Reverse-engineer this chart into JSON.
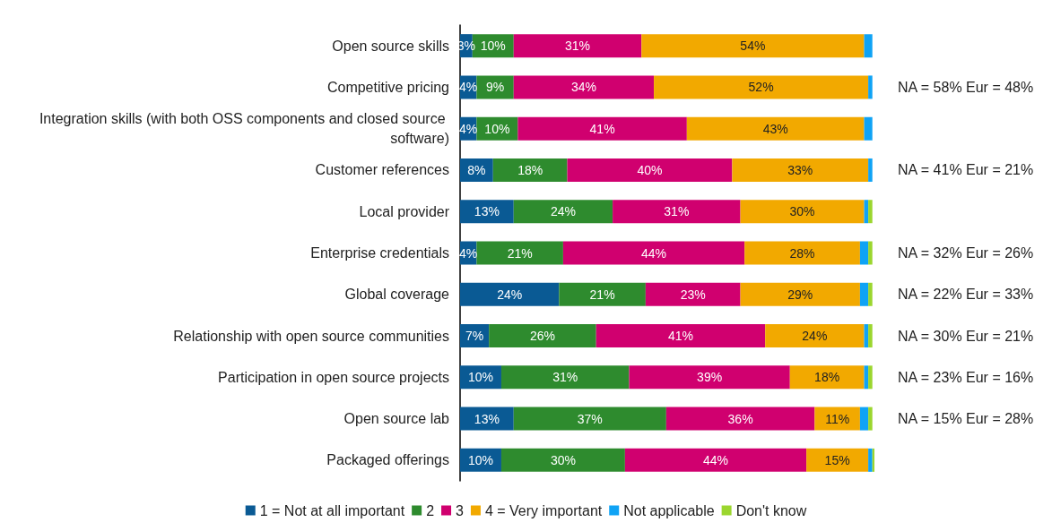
{
  "chart_data": {
    "type": "bar",
    "orientation": "horizontal",
    "stacked": true,
    "legend": "bottom",
    "categories": [
      "Open source skills",
      "Competitive pricing",
      "Integration skills (with both OSS components and closed source software)",
      "Customer references",
      "Local provider",
      "Enterprise credentials",
      "Global coverage",
      "Relationship with open source communities",
      "Participation in open source projects",
      "Open source lab",
      "Packaged offerings"
    ],
    "series": [
      {
        "name": "1 = Not at all important",
        "color": "#0a5a94",
        "values": [
          3,
          4,
          4,
          8,
          13,
          4,
          24,
          7,
          10,
          13,
          10
        ],
        "value_labels": [
          "3%",
          "4%",
          "4%",
          "8%",
          "13%",
          "4%",
          "24%",
          "7%",
          "10%",
          "13%",
          "10%"
        ]
      },
      {
        "name": "2",
        "color": "#2e8b2e",
        "values": [
          10,
          9,
          10,
          18,
          24,
          21,
          21,
          26,
          31,
          37,
          30
        ],
        "value_labels": [
          "10%",
          "9%",
          "10%",
          "18%",
          "24%",
          "21%",
          "21%",
          "26%",
          "31%",
          "37%",
          "30%"
        ]
      },
      {
        "name": "3",
        "color": "#d0006f",
        "values": [
          31,
          34,
          41,
          40,
          31,
          44,
          23,
          41,
          39,
          36,
          44
        ],
        "value_labels": [
          "31%",
          "34%",
          "41%",
          "40%",
          "31%",
          "44%",
          "23%",
          "41%",
          "39%",
          "36%",
          "44%"
        ]
      },
      {
        "name": "4 = Very important",
        "color": "#f2a900",
        "values": [
          54,
          52,
          43,
          33,
          30,
          28,
          29,
          24,
          18,
          11,
          15
        ],
        "value_labels": [
          "54%",
          "52%",
          "43%",
          "33%",
          "30%",
          "28%",
          "29%",
          "24%",
          "18%",
          "11%",
          "15%"
        ]
      },
      {
        "name": "Not applicable",
        "color": "#0fa3f5",
        "values": [
          2,
          1,
          2,
          1,
          1,
          2,
          2,
          1,
          1,
          2,
          1
        ]
      },
      {
        "name": "Don't know",
        "color": "#9bd62e",
        "values": [
          0,
          0,
          0,
          0,
          1,
          1,
          1,
          1,
          1,
          1,
          0.5
        ]
      }
    ],
    "annotations": [
      "NA = 58% Eur = 48%",
      "NA = 41% Eur = 21%",
      "NA = 32% Eur = 26%",
      "NA = 22% Eur = 33%",
      "NA = 30% Eur = 21%",
      "NA = 23% Eur = 16%",
      "NA = 15% Eur = 28%"
    ]
  }
}
